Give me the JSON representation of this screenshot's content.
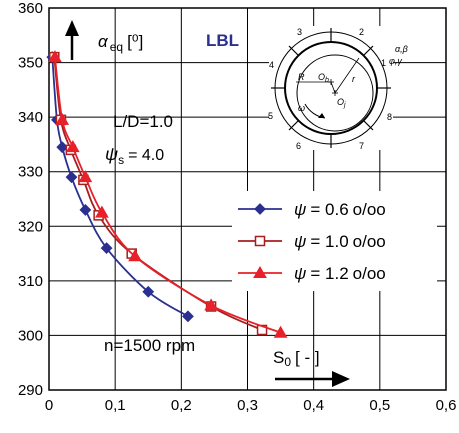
{
  "chart_data": {
    "type": "line",
    "xlim": [
      0,
      0.6
    ],
    "ylim": [
      290,
      360
    ],
    "x_ticks": [
      "0",
      "0,1",
      "0,2",
      "0,3",
      "0,4",
      "0,5",
      "0,6"
    ],
    "y_ticks": [
      "290",
      "300",
      "310",
      "320",
      "330",
      "340",
      "350",
      "360"
    ],
    "grid": true,
    "legend_position": "right-middle",
    "y_label": {
      "main": "α",
      "sub": "eq",
      "unit": "[⁰]"
    },
    "x_label": {
      "main": "S",
      "sub": "0",
      "unit": "[ - ]"
    },
    "annotations": {
      "lbl": "LBL",
      "ld": "L/D=1.0",
      "psi_s_symbol": "ψ",
      "psi_s_sub": "s",
      "psi_s_value": "= 4.0",
      "speed": "n=1500 rpm"
    },
    "series": [
      {
        "name": "ψ = 0.6 ‰",
        "symbol": "ψ",
        "value": "= 0.6",
        "unit": "o/oo",
        "color": "#2b2f8f",
        "marker": "diamond",
        "x": [
          0.005,
          0.012,
          0.02,
          0.034,
          0.055,
          0.087,
          0.15,
          0.21
        ],
        "y": [
          351,
          339.5,
          334.5,
          329,
          323,
          316,
          308,
          303.5
        ]
      },
      {
        "name": "ψ = 1.0 ‰",
        "symbol": "ψ",
        "value": "= 1.0",
        "unit": "o/oo",
        "color": "#a61e1e",
        "marker": "square-open",
        "x": [
          0.008,
          0.018,
          0.033,
          0.052,
          0.075,
          0.125,
          0.245,
          0.322
        ],
        "y": [
          351,
          339.5,
          334,
          328.5,
          322,
          315,
          305.3,
          301
        ]
      },
      {
        "name": "ψ = 1.2 ‰",
        "symbol": "ψ",
        "value": "= 1.2",
        "unit": "o/oo",
        "color": "#e8202a",
        "marker": "triangle",
        "x": [
          0.009,
          0.02,
          0.036,
          0.055,
          0.08,
          0.13,
          0.245,
          0.35
        ],
        "y": [
          351,
          339.5,
          334.5,
          329,
          322.5,
          314.5,
          305.5,
          300.5
        ]
      }
    ]
  },
  "inset": {
    "zones": [
      "1",
      "2",
      "3",
      "4",
      "5",
      "6",
      "7",
      "8"
    ],
    "labels": {
      "alpha_beta": "α,β",
      "phi_gamma": "φ,γ",
      "R": "R",
      "Ob": "O",
      "Ob_sub": "b",
      "Oj": "O",
      "Oj_sub": "j",
      "r": "r",
      "omega": "ω"
    }
  },
  "colors": {
    "axis": "#000000",
    "grid": "#000000",
    "lbl_text": "#2b2f8f"
  }
}
